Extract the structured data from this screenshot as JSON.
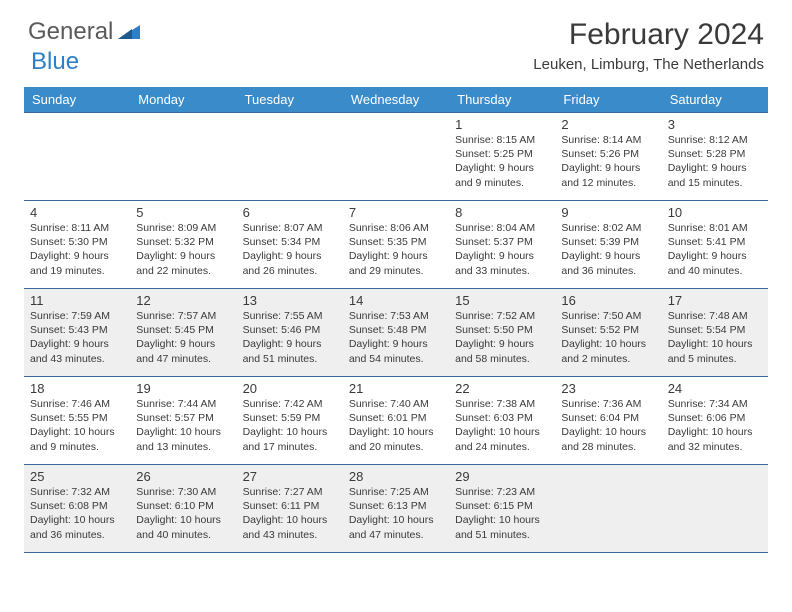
{
  "logo": {
    "general": "General",
    "blue": "Blue"
  },
  "title": "February 2024",
  "location": "Leuken, Limburg, The Netherlands",
  "day_headers": [
    "Sunday",
    "Monday",
    "Tuesday",
    "Wednesday",
    "Thursday",
    "Friday",
    "Saturday"
  ],
  "colors": {
    "header_bar": "#3a8bc9",
    "header_text": "#ffffff",
    "cell_border": "#3a6a9a",
    "shaded_bg": "#efefef",
    "body_text": "#3a3a3a",
    "logo_gray": "#5a5a5a",
    "logo_blue": "#2d7fc7"
  },
  "weeks": [
    [
      null,
      null,
      null,
      null,
      {
        "n": "1",
        "sr": "Sunrise: 8:15 AM",
        "ss": "Sunset: 5:25 PM",
        "d1": "Daylight: 9 hours",
        "d2": "and 9 minutes."
      },
      {
        "n": "2",
        "sr": "Sunrise: 8:14 AM",
        "ss": "Sunset: 5:26 PM",
        "d1": "Daylight: 9 hours",
        "d2": "and 12 minutes."
      },
      {
        "n": "3",
        "sr": "Sunrise: 8:12 AM",
        "ss": "Sunset: 5:28 PM",
        "d1": "Daylight: 9 hours",
        "d2": "and 15 minutes."
      }
    ],
    [
      {
        "n": "4",
        "sr": "Sunrise: 8:11 AM",
        "ss": "Sunset: 5:30 PM",
        "d1": "Daylight: 9 hours",
        "d2": "and 19 minutes."
      },
      {
        "n": "5",
        "sr": "Sunrise: 8:09 AM",
        "ss": "Sunset: 5:32 PM",
        "d1": "Daylight: 9 hours",
        "d2": "and 22 minutes."
      },
      {
        "n": "6",
        "sr": "Sunrise: 8:07 AM",
        "ss": "Sunset: 5:34 PM",
        "d1": "Daylight: 9 hours",
        "d2": "and 26 minutes."
      },
      {
        "n": "7",
        "sr": "Sunrise: 8:06 AM",
        "ss": "Sunset: 5:35 PM",
        "d1": "Daylight: 9 hours",
        "d2": "and 29 minutes."
      },
      {
        "n": "8",
        "sr": "Sunrise: 8:04 AM",
        "ss": "Sunset: 5:37 PM",
        "d1": "Daylight: 9 hours",
        "d2": "and 33 minutes."
      },
      {
        "n": "9",
        "sr": "Sunrise: 8:02 AM",
        "ss": "Sunset: 5:39 PM",
        "d1": "Daylight: 9 hours",
        "d2": "and 36 minutes."
      },
      {
        "n": "10",
        "sr": "Sunrise: 8:01 AM",
        "ss": "Sunset: 5:41 PM",
        "d1": "Daylight: 9 hours",
        "d2": "and 40 minutes."
      }
    ],
    [
      {
        "n": "11",
        "sr": "Sunrise: 7:59 AM",
        "ss": "Sunset: 5:43 PM",
        "d1": "Daylight: 9 hours",
        "d2": "and 43 minutes."
      },
      {
        "n": "12",
        "sr": "Sunrise: 7:57 AM",
        "ss": "Sunset: 5:45 PM",
        "d1": "Daylight: 9 hours",
        "d2": "and 47 minutes."
      },
      {
        "n": "13",
        "sr": "Sunrise: 7:55 AM",
        "ss": "Sunset: 5:46 PM",
        "d1": "Daylight: 9 hours",
        "d2": "and 51 minutes."
      },
      {
        "n": "14",
        "sr": "Sunrise: 7:53 AM",
        "ss": "Sunset: 5:48 PM",
        "d1": "Daylight: 9 hours",
        "d2": "and 54 minutes."
      },
      {
        "n": "15",
        "sr": "Sunrise: 7:52 AM",
        "ss": "Sunset: 5:50 PM",
        "d1": "Daylight: 9 hours",
        "d2": "and 58 minutes."
      },
      {
        "n": "16",
        "sr": "Sunrise: 7:50 AM",
        "ss": "Sunset: 5:52 PM",
        "d1": "Daylight: 10 hours",
        "d2": "and 2 minutes."
      },
      {
        "n": "17",
        "sr": "Sunrise: 7:48 AM",
        "ss": "Sunset: 5:54 PM",
        "d1": "Daylight: 10 hours",
        "d2": "and 5 minutes."
      }
    ],
    [
      {
        "n": "18",
        "sr": "Sunrise: 7:46 AM",
        "ss": "Sunset: 5:55 PM",
        "d1": "Daylight: 10 hours",
        "d2": "and 9 minutes."
      },
      {
        "n": "19",
        "sr": "Sunrise: 7:44 AM",
        "ss": "Sunset: 5:57 PM",
        "d1": "Daylight: 10 hours",
        "d2": "and 13 minutes."
      },
      {
        "n": "20",
        "sr": "Sunrise: 7:42 AM",
        "ss": "Sunset: 5:59 PM",
        "d1": "Daylight: 10 hours",
        "d2": "and 17 minutes."
      },
      {
        "n": "21",
        "sr": "Sunrise: 7:40 AM",
        "ss": "Sunset: 6:01 PM",
        "d1": "Daylight: 10 hours",
        "d2": "and 20 minutes."
      },
      {
        "n": "22",
        "sr": "Sunrise: 7:38 AM",
        "ss": "Sunset: 6:03 PM",
        "d1": "Daylight: 10 hours",
        "d2": "and 24 minutes."
      },
      {
        "n": "23",
        "sr": "Sunrise: 7:36 AM",
        "ss": "Sunset: 6:04 PM",
        "d1": "Daylight: 10 hours",
        "d2": "and 28 minutes."
      },
      {
        "n": "24",
        "sr": "Sunrise: 7:34 AM",
        "ss": "Sunset: 6:06 PM",
        "d1": "Daylight: 10 hours",
        "d2": "and 32 minutes."
      }
    ],
    [
      {
        "n": "25",
        "sr": "Sunrise: 7:32 AM",
        "ss": "Sunset: 6:08 PM",
        "d1": "Daylight: 10 hours",
        "d2": "and 36 minutes."
      },
      {
        "n": "26",
        "sr": "Sunrise: 7:30 AM",
        "ss": "Sunset: 6:10 PM",
        "d1": "Daylight: 10 hours",
        "d2": "and 40 minutes."
      },
      {
        "n": "27",
        "sr": "Sunrise: 7:27 AM",
        "ss": "Sunset: 6:11 PM",
        "d1": "Daylight: 10 hours",
        "d2": "and 43 minutes."
      },
      {
        "n": "28",
        "sr": "Sunrise: 7:25 AM",
        "ss": "Sunset: 6:13 PM",
        "d1": "Daylight: 10 hours",
        "d2": "and 47 minutes."
      },
      {
        "n": "29",
        "sr": "Sunrise: 7:23 AM",
        "ss": "Sunset: 6:15 PM",
        "d1": "Daylight: 10 hours",
        "d2": "and 51 minutes."
      },
      null,
      null
    ]
  ],
  "shaded_rows": [
    2,
    4
  ]
}
